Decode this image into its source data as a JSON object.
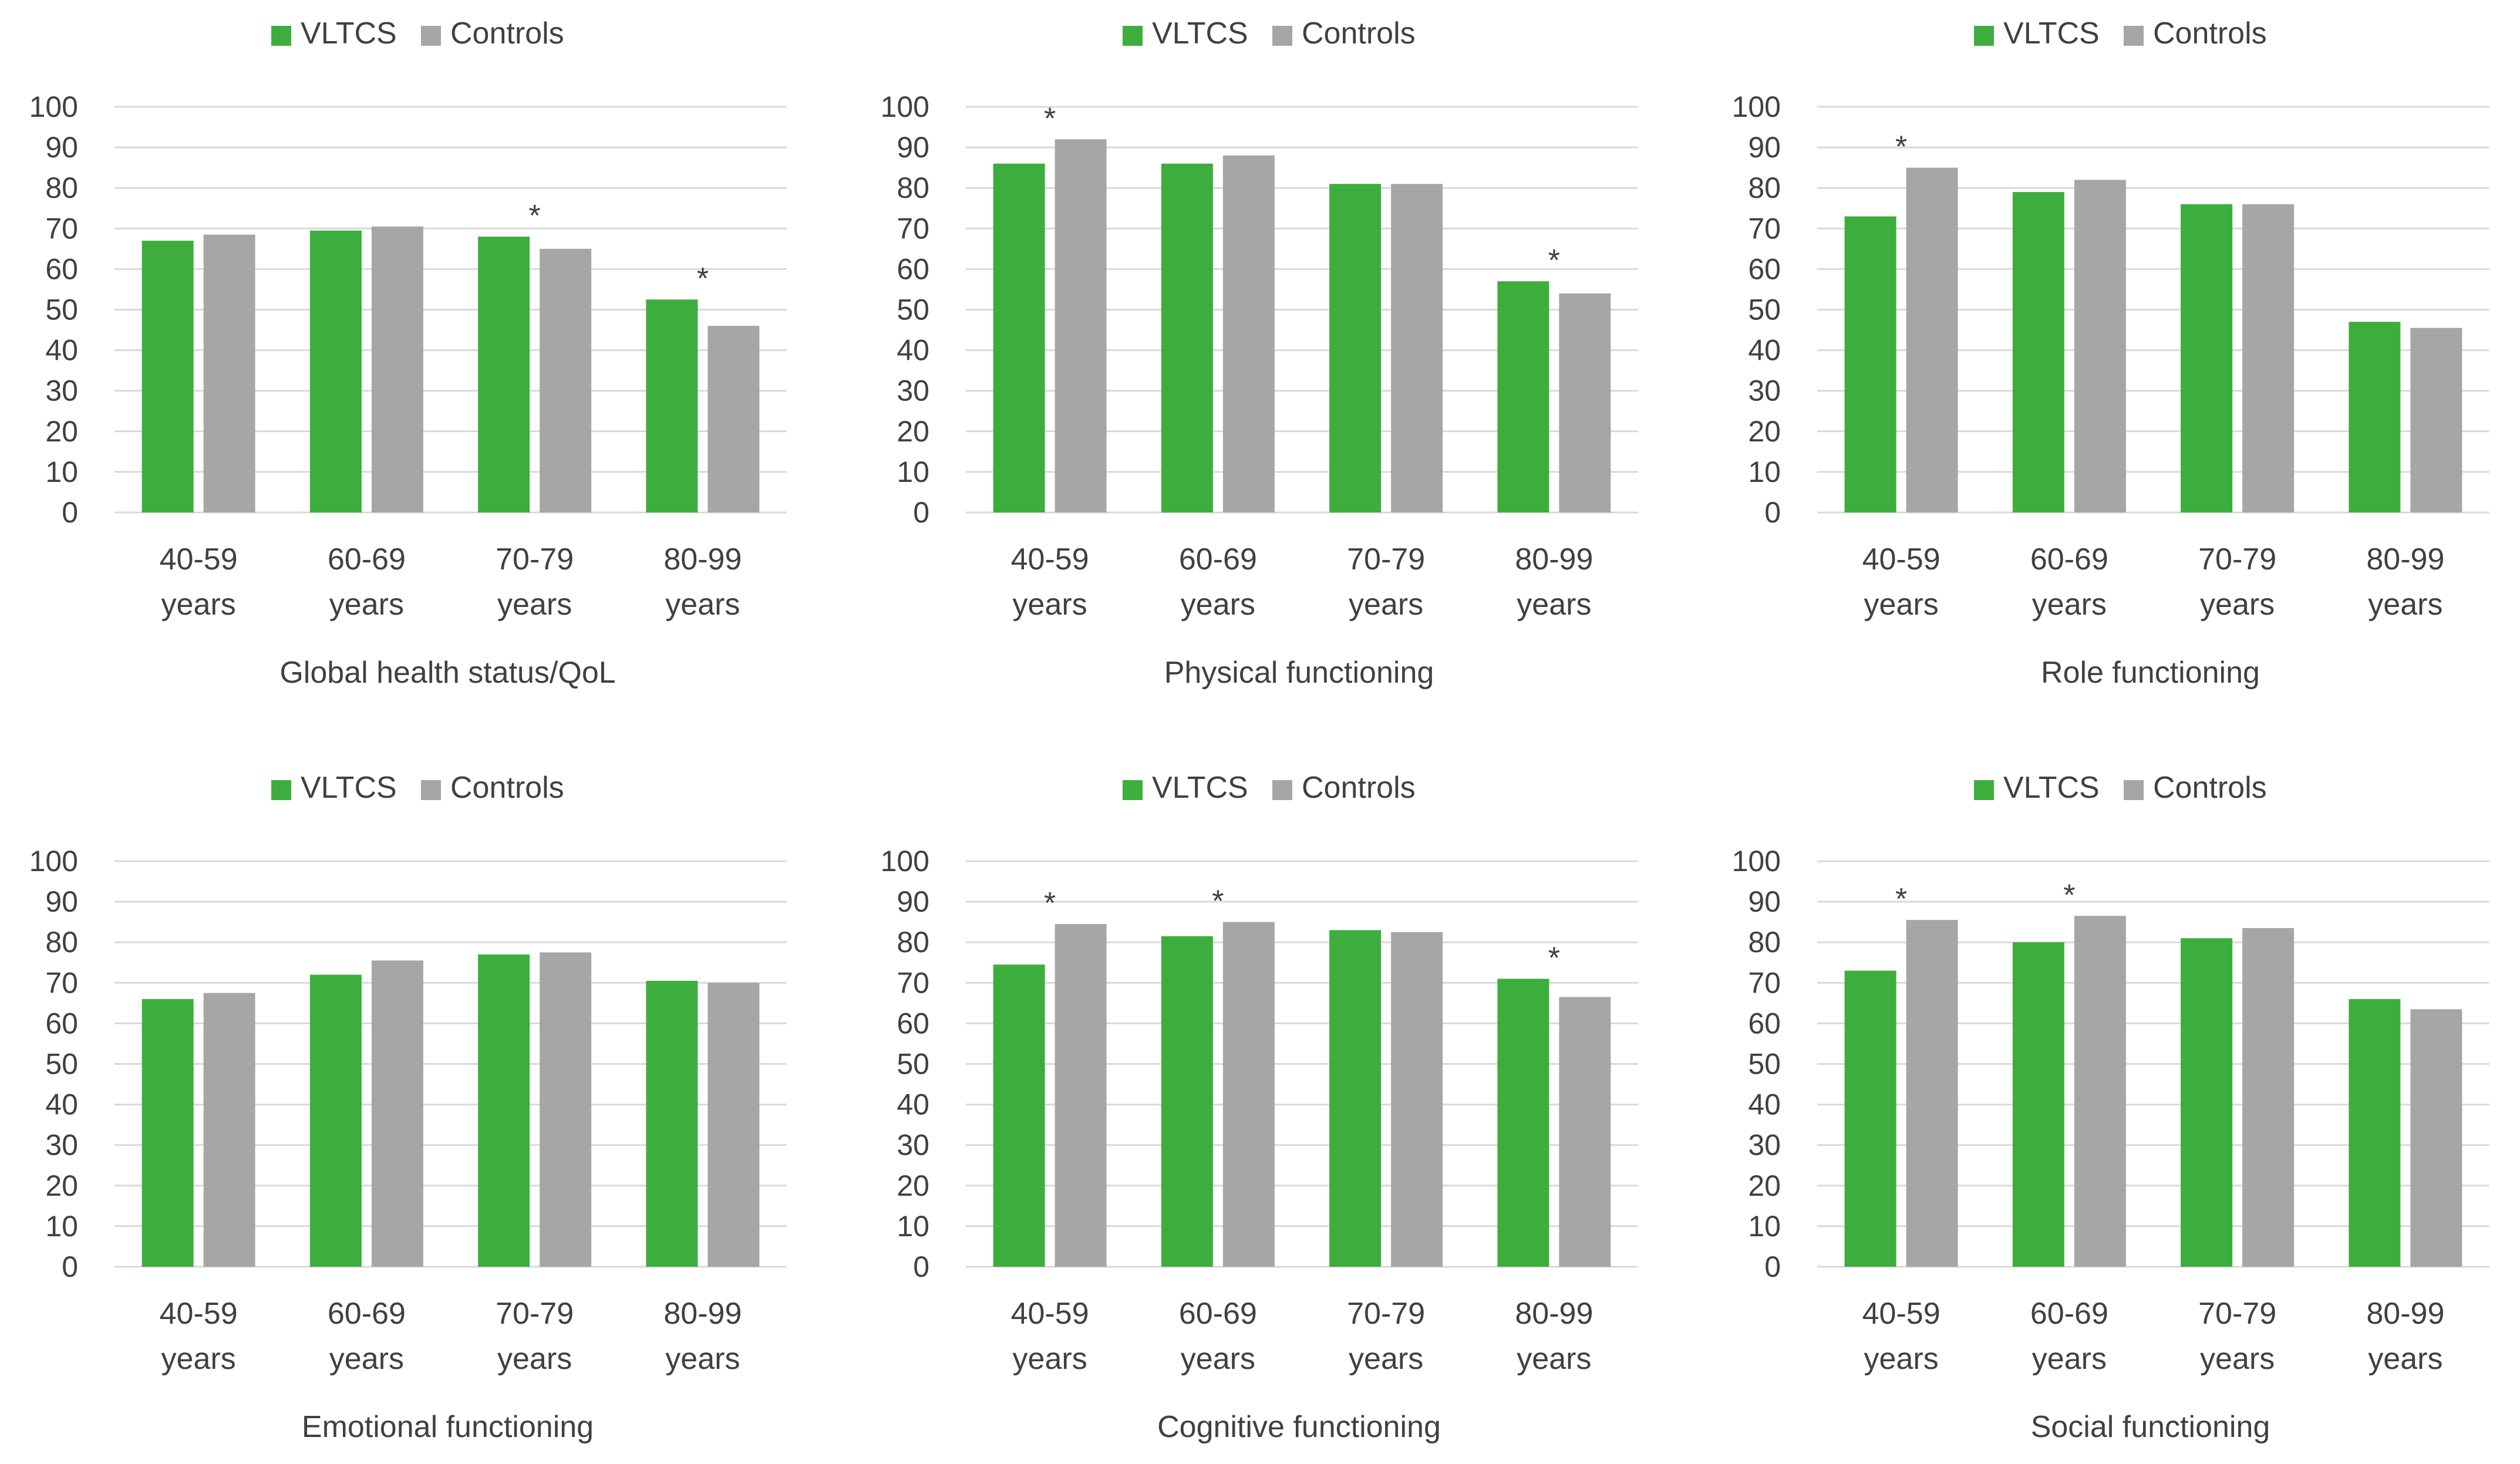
{
  "colors": {
    "vltcs": "#3DAE3D",
    "controls": "#A6A6A6",
    "grid": "#D9D9D9",
    "text": "#404040"
  },
  "chart_data": [
    {
      "type": "bar",
      "title": "Global health status/QoL",
      "categories": [
        [
          "40-59",
          "years"
        ],
        [
          "60-69",
          "years"
        ],
        [
          "70-79",
          "years"
        ],
        [
          "80-99",
          "years"
        ]
      ],
      "series": [
        {
          "name": "VLTCS",
          "values": [
            67,
            69.5,
            68,
            52.5
          ]
        },
        {
          "name": "Controls",
          "values": [
            68.5,
            70.5,
            65,
            46
          ]
        }
      ],
      "significant": [
        false,
        false,
        true,
        true
      ],
      "significance_marker": "*",
      "ylim": [
        0,
        100
      ],
      "yticks": [
        0,
        10,
        20,
        30,
        40,
        50,
        60,
        70,
        80,
        90,
        100
      ],
      "legend": "top-center"
    },
    {
      "type": "bar",
      "title": "Physical functioning",
      "categories": [
        [
          "40-59",
          "years"
        ],
        [
          "60-69",
          "years"
        ],
        [
          "70-79",
          "years"
        ],
        [
          "80-99",
          "years"
        ]
      ],
      "series": [
        {
          "name": "VLTCS",
          "values": [
            86,
            86,
            81,
            57
          ]
        },
        {
          "name": "Controls",
          "values": [
            92,
            88,
            81,
            54
          ]
        }
      ],
      "significant": [
        true,
        false,
        false,
        true
      ],
      "significance_marker": "*",
      "ylim": [
        0,
        100
      ],
      "yticks": [
        0,
        10,
        20,
        30,
        40,
        50,
        60,
        70,
        80,
        90,
        100
      ],
      "legend": "top-center"
    },
    {
      "type": "bar",
      "title": "Role functioning",
      "categories": [
        [
          "40-59",
          "years"
        ],
        [
          "60-69",
          "years"
        ],
        [
          "70-79",
          "years"
        ],
        [
          "80-99",
          "years"
        ]
      ],
      "series": [
        {
          "name": "VLTCS",
          "values": [
            73,
            79,
            76,
            47
          ]
        },
        {
          "name": "Controls",
          "values": [
            85,
            82,
            76,
            45.5
          ]
        }
      ],
      "significant": [
        true,
        false,
        false,
        false
      ],
      "significance_marker": "*",
      "ylim": [
        0,
        100
      ],
      "yticks": [
        0,
        10,
        20,
        30,
        40,
        50,
        60,
        70,
        80,
        90,
        100
      ],
      "legend": "top-center"
    },
    {
      "type": "bar",
      "title": "Emotional functioning",
      "categories": [
        [
          "40-59",
          "years"
        ],
        [
          "60-69",
          "years"
        ],
        [
          "70-79",
          "years"
        ],
        [
          "80-99",
          "years"
        ]
      ],
      "series": [
        {
          "name": "VLTCS",
          "values": [
            66,
            72,
            77,
            70.5
          ]
        },
        {
          "name": "Controls",
          "values": [
            67.5,
            75.5,
            77.5,
            70
          ]
        }
      ],
      "significant": [
        false,
        false,
        false,
        false
      ],
      "significance_marker": "*",
      "ylim": [
        0,
        100
      ],
      "yticks": [
        0,
        10,
        20,
        30,
        40,
        50,
        60,
        70,
        80,
        90,
        100
      ],
      "legend": "top-center"
    },
    {
      "type": "bar",
      "title": "Cognitive functioning",
      "categories": [
        [
          "40-59",
          "years"
        ],
        [
          "60-69",
          "years"
        ],
        [
          "70-79",
          "years"
        ],
        [
          "80-99",
          "years"
        ]
      ],
      "series": [
        {
          "name": "VLTCS",
          "values": [
            74.5,
            81.5,
            83,
            71
          ]
        },
        {
          "name": "Controls",
          "values": [
            84.5,
            85,
            82.5,
            66.5
          ]
        }
      ],
      "significant": [
        true,
        true,
        false,
        true
      ],
      "significance_marker": "*",
      "ylim": [
        0,
        100
      ],
      "yticks": [
        0,
        10,
        20,
        30,
        40,
        50,
        60,
        70,
        80,
        90,
        100
      ],
      "legend": "top-center"
    },
    {
      "type": "bar",
      "title": "Social functioning",
      "categories": [
        [
          "40-59",
          "years"
        ],
        [
          "60-69",
          "years"
        ],
        [
          "70-79",
          "years"
        ],
        [
          "80-99",
          "years"
        ]
      ],
      "series": [
        {
          "name": "VLTCS",
          "values": [
            73,
            80,
            81,
            66
          ]
        },
        {
          "name": "Controls",
          "values": [
            85.5,
            86.5,
            83.5,
            63.5
          ]
        }
      ],
      "significant": [
        true,
        true,
        false,
        false
      ],
      "significance_marker": "*",
      "ylim": [
        0,
        100
      ],
      "yticks": [
        0,
        10,
        20,
        30,
        40,
        50,
        60,
        70,
        80,
        90,
        100
      ],
      "legend": "top-center"
    }
  ]
}
